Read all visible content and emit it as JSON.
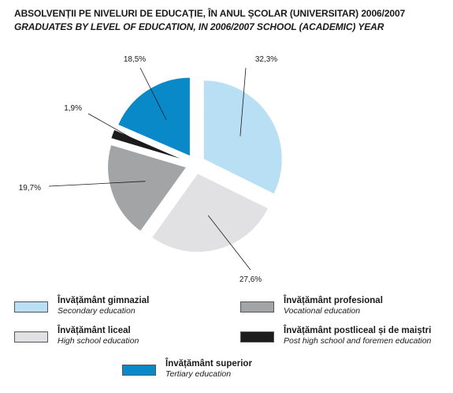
{
  "title_ro": "ABSOLVENȚII PE NIVELURI DE EDUCAȚIE, ÎN ANUL ȘCOLAR (UNIVERSITAR) 2006/2007",
  "title_en": "GRADUATES BY LEVEL OF EDUCATION, IN 2006/2007 SCHOOL (ACADEMIC) YEAR",
  "chart_data": {
    "type": "pie",
    "title": "ABSOLVENȚII PE NIVELURI DE EDUCAȚIE, ÎN ANUL ȘCOLAR (UNIVERSITAR) 2006/2007",
    "subtitle": "GRADUATES BY LEVEL OF EDUCATION, IN 2006/2007 SCHOOL (ACADEMIC) YEAR",
    "legend_position": "bottom",
    "slices": [
      {
        "name": "Învățământ gimnazial",
        "name_en": "Secondary education",
        "value": 32.3,
        "label": "32,3%",
        "color": "#b9dff4"
      },
      {
        "name": "Învățământ liceal",
        "name_en": "High school education",
        "value": 27.6,
        "label": "27,6%",
        "color": "#e1e1e3"
      },
      {
        "name": "Învățământ profesional",
        "name_en": "Vocational  education",
        "value": 19.7,
        "label": "19,7%",
        "color": "#a3a4a6"
      },
      {
        "name": "Învățământ postliceal și de maiștri",
        "name_en": "Post high school and foremen education",
        "value": 1.9,
        "label": "1,9%",
        "color": "#1c1c1c"
      },
      {
        "name": "Învățământ superior",
        "name_en": "Tertiary education",
        "value": 18.5,
        "label": "18,5%",
        "color": "#0a89c9"
      }
    ]
  },
  "legend": [
    {
      "name": "Învățământ gimnazial",
      "sub": "Secondary education",
      "color": "#b9dff4"
    },
    {
      "name": "Învățământ profesional",
      "sub": "Vocational  education",
      "color": "#a3a4a6"
    },
    {
      "name": "Învățământ liceal",
      "sub": "High school education",
      "color": "#e1e1e3"
    },
    {
      "name": "Învățământ postliceal și de maiștri",
      "sub": "Post high school and foremen education",
      "color": "#1c1c1c"
    },
    {
      "name": "Învățământ superior",
      "sub": "Tertiary education",
      "color": "#0a89c9"
    }
  ]
}
